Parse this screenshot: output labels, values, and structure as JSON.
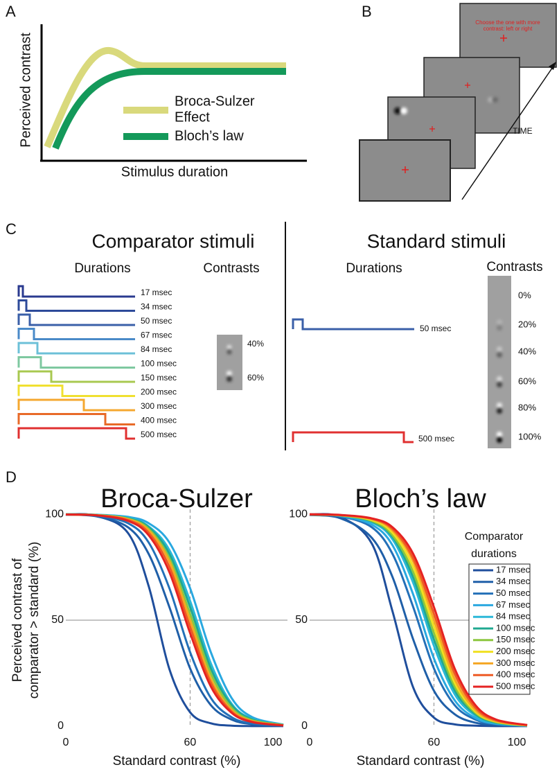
{
  "panel_a": {
    "label": "A",
    "y_label": "Perceived contrast",
    "x_label": "Stimulus duration",
    "legend_1": [
      "Broca-Sulzer",
      "Effect"
    ],
    "legend_2": "Bloch’s law"
  },
  "panel_b": {
    "label": "B",
    "instruction": [
      "Choose the one with more",
      "contrast: left or right"
    ],
    "time": "TIME"
  },
  "panel_c": {
    "label": "C",
    "comparator": {
      "title": "Comparator stimuli",
      "durations_heading": "Durations",
      "contrasts_heading": "Contrasts",
      "durations": [
        "17 msec",
        "34 msec",
        "50 msec",
        "67 msec",
        "84 msec",
        "100 msec",
        "150 msec",
        "200 msec",
        "300 msec",
        "400 msec",
        "500 msec"
      ],
      "colors": [
        "#2a3a8f",
        "#2d4a9a",
        "#3a5fa8",
        "#4a8ac8",
        "#6cc0d8",
        "#7ec8a0",
        "#a8c850",
        "#f0e030",
        "#f5a830",
        "#e86a28",
        "#e03030"
      ],
      "contrasts": [
        "40%",
        "60%"
      ]
    },
    "standard": {
      "title": "Standard stimuli",
      "durations_heading": "Durations",
      "contrasts_heading": "Contrasts",
      "durations": [
        "50 msec",
        "500 msec"
      ],
      "colors": [
        "#3a5fa8",
        "#e03030"
      ],
      "contrasts": [
        "0%",
        "20%",
        "40%",
        "60%",
        "80%",
        "100%"
      ]
    }
  },
  "panel_d": {
    "label": "D"
  },
  "chart_data": [
    {
      "type": "line",
      "title": "Broca-Sulzer",
      "x_label": "Standard contrast (%)",
      "y_label": [
        "Perceived contrast of",
        "comparator > standard (%)"
      ],
      "x": [
        0,
        15,
        30,
        40,
        50,
        60,
        70,
        80,
        90,
        105
      ],
      "xlim": [
        0,
        107
      ],
      "ylim": [
        -3,
        104
      ],
      "xticks": [
        0,
        60,
        100
      ],
      "yticks": [
        0,
        50,
        100
      ],
      "reference_x": 60,
      "reference_y": 50,
      "series": [
        {
          "color": "#1f4e9c",
          "values": [
            100,
            99.2,
            91.2,
            66.1,
            26.9,
            6.5,
            1.3,
            0.2,
            0,
            0
          ]
        },
        {
          "color": "#1f5fa8",
          "values": [
            99.9,
            99.0,
            93.9,
            81.3,
            56.2,
            27.2,
            9.9,
            3.1,
            0.9,
            0.1
          ]
        },
        {
          "color": "#2370b8",
          "values": [
            99.8,
            99.3,
            95.8,
            86.7,
            65.1,
            34.9,
            13.3,
            4.2,
            1.2,
            0.2
          ]
        },
        {
          "color": "#29a8e0",
          "values": [
            100,
            99.8,
            98.8,
            95.8,
            86.7,
            65.1,
            34.9,
            13.3,
            4.2,
            0.7
          ]
        },
        {
          "color": "#2bb8d8",
          "values": [
            100,
            99.7,
            98.4,
            94.3,
            83.1,
            59.1,
            29.6,
            10.6,
            3.4,
            0.6
          ]
        },
        {
          "color": "#20a890",
          "values": [
            100,
            99.7,
            98.1,
            93.9,
            81.3,
            56.2,
            27.2,
            9.9,
            3.1,
            0.5
          ]
        },
        {
          "color": "#8cc63f",
          "values": [
            100,
            99.6,
            97.9,
            93.1,
            79.2,
            53.0,
            24.8,
            8.7,
            2.7,
            0.5
          ]
        },
        {
          "color": "#f0e020",
          "values": [
            99.9,
            99.6,
            97.7,
            92.4,
            77.7,
            50,
            22.3,
            7.6,
            2.3,
            0.4
          ]
        },
        {
          "color": "#f5a623",
          "values": [
            99.9,
            99.6,
            97.7,
            92.4,
            77.7,
            50,
            22.3,
            7.6,
            2.3,
            0.4
          ]
        },
        {
          "color": "#ee5a24",
          "values": [
            99.9,
            99.5,
            97.3,
            91.3,
            75.2,
            46.9,
            20.5,
            6.9,
            2.1,
            0.3
          ]
        },
        {
          "color": "#e52222",
          "values": [
            99.9,
            99.5,
            96.9,
            90.1,
            72.7,
            43.9,
            18.7,
            6.3,
            1.9,
            0.3
          ]
        }
      ]
    },
    {
      "type": "line",
      "title": "Bloch’s law",
      "x_label": "Standard contrast (%)",
      "legend_title": [
        "Comparator",
        "durations"
      ],
      "x": [
        0,
        15,
        30,
        40,
        50,
        60,
        70,
        80,
        90,
        105
      ],
      "xlim": [
        0,
        107
      ],
      "ylim": [
        -3,
        104
      ],
      "xticks": [
        0,
        60,
        100
      ],
      "yticks": [
        0,
        50,
        100
      ],
      "reference_x": 60,
      "reference_y": 50,
      "series": [
        {
          "name": "17 msec",
          "color": "#1f4e9c",
          "values": [
            100,
            98.7,
            86.2,
            54.2,
            18.2,
            4.0,
            0.8,
            0.2,
            0,
            0
          ]
        },
        {
          "name": "34 msec",
          "color": "#1f5fa8",
          "values": [
            99.7,
            98.1,
            88.9,
            70.4,
            40.9,
            16.7,
            5.6,
            1.6,
            0.5,
            0.1
          ]
        },
        {
          "name": "50 msec",
          "color": "#2370b8",
          "values": [
            99.9,
            99.0,
            93.9,
            81.3,
            56.2,
            27.2,
            9.9,
            3.1,
            0.9,
            0.1
          ]
        },
        {
          "name": "67 msec",
          "color": "#29a8e0",
          "values": [
            99.9,
            99.2,
            95.1,
            85.4,
            62.1,
            31.9,
            12.2,
            3.8,
            1.1,
            0.2
          ]
        },
        {
          "name": "84 msec",
          "color": "#2bb8d8",
          "values": [
            99.9,
            99.4,
            96.2,
            88.2,
            67.6,
            37.9,
            15.1,
            4.9,
            1.4,
            0.2
          ]
        },
        {
          "name": "100 msec",
          "color": "#20a890",
          "values": [
            99.9,
            99.4,
            96.6,
            89.4,
            70.2,
            40.9,
            16.9,
            5.6,
            1.6,
            0.3
          ]
        },
        {
          "name": "150 msec",
          "color": "#8cc63f",
          "values": [
            99.9,
            99.5,
            96.9,
            90.1,
            72.7,
            43.9,
            18.7,
            6.3,
            1.9,
            0.3
          ]
        },
        {
          "name": "200 msec",
          "color": "#f0e020",
          "values": [
            99.9,
            99.5,
            97.3,
            91.3,
            75.2,
            46.9,
            20.5,
            6.9,
            2.1,
            0.3
          ]
        },
        {
          "name": "300 msec",
          "color": "#f5a623",
          "values": [
            99.9,
            99.6,
            97.7,
            92.4,
            77.7,
            50,
            22.3,
            7.6,
            2.3,
            0.4
          ]
        },
        {
          "name": "400 msec",
          "color": "#ee5a24",
          "values": [
            100,
            99.6,
            97.9,
            93.1,
            79.2,
            53.0,
            24.8,
            8.7,
            2.7,
            0.5
          ]
        },
        {
          "name": "500 msec",
          "color": "#e52222",
          "values": [
            100,
            99.7,
            98.1,
            93.9,
            81.3,
            56.2,
            27.2,
            9.9,
            3.1,
            0.5
          ]
        }
      ]
    }
  ]
}
